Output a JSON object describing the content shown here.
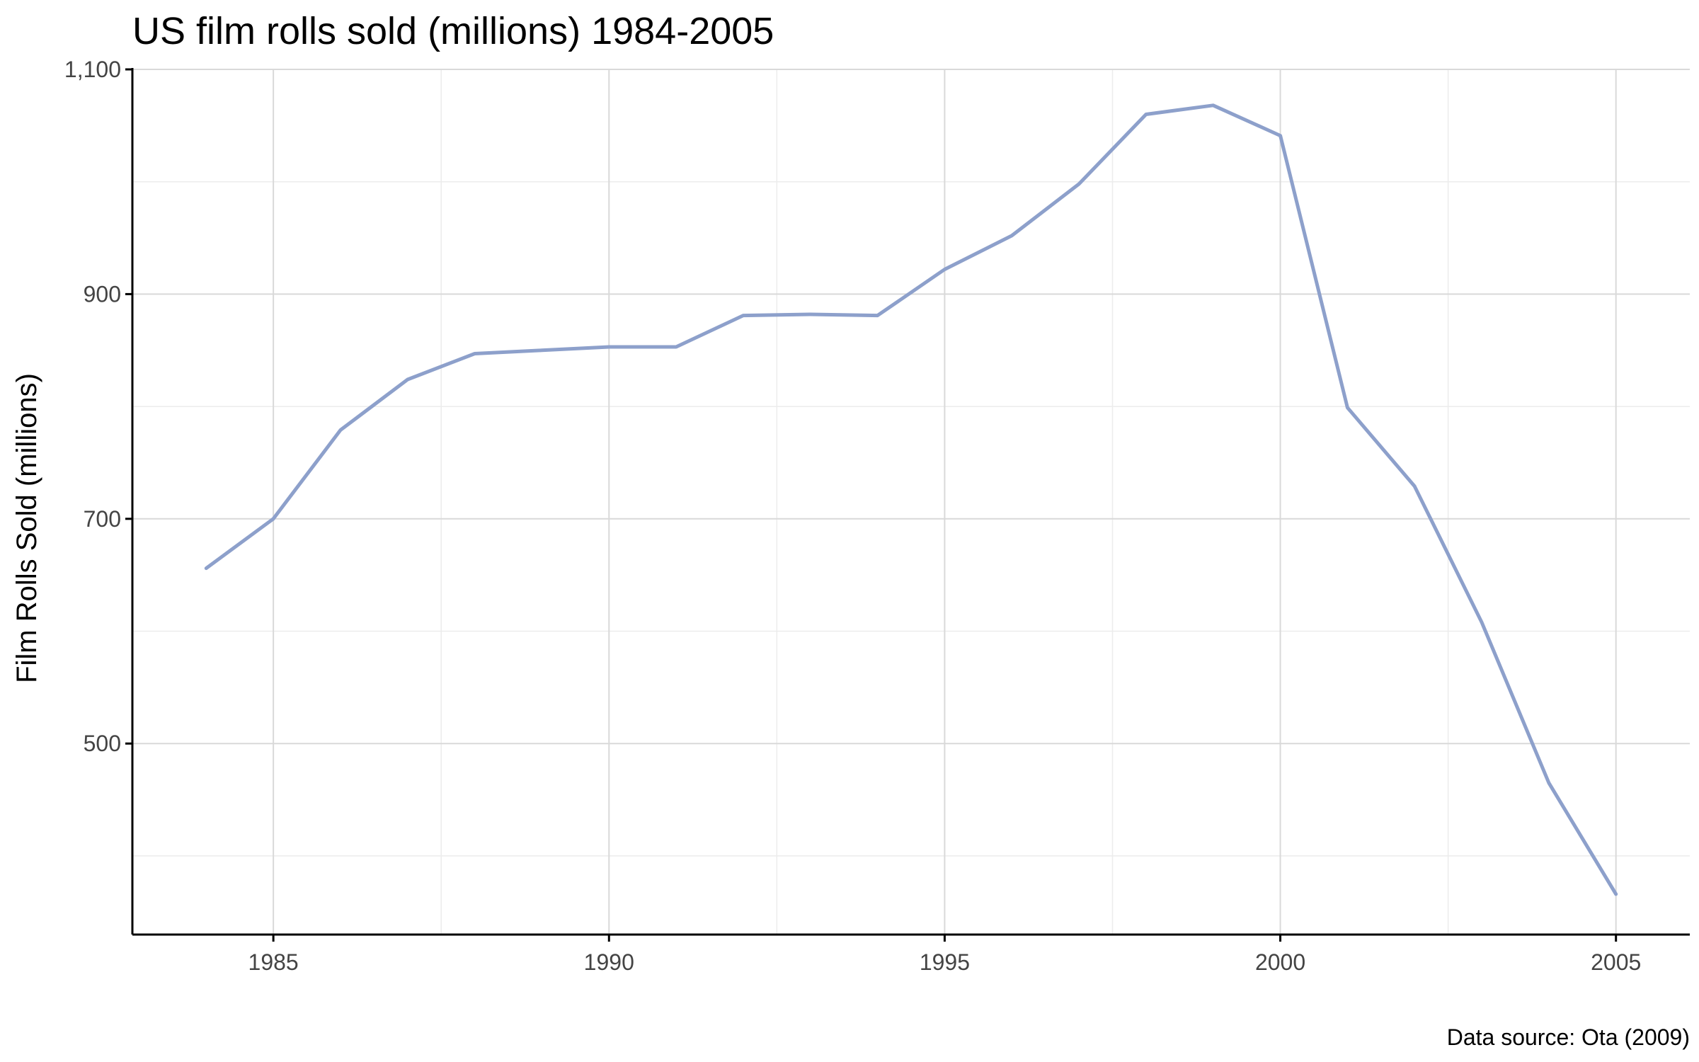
{
  "chart_data": {
    "type": "line",
    "title": "US film rolls sold (millions) 1984-2005",
    "xlabel": "",
    "ylabel": "Film Rolls Sold (millions)",
    "caption": "Data source: Ota (2009)",
    "xlim": [
      1982.9,
      2006.1
    ],
    "ylim": [
      330,
      1100
    ],
    "x_ticks": [
      1985,
      1990,
      1995,
      2000,
      2005
    ],
    "x_tick_labels": [
      "1985",
      "1990",
      "1995",
      "2000",
      "2005"
    ],
    "x_minor_ticks": [
      1987.5,
      1992.5,
      1997.5,
      2002.5
    ],
    "y_ticks": [
      500,
      700,
      900,
      1100
    ],
    "y_tick_labels": [
      "500",
      "700",
      "900",
      "1,100"
    ],
    "y_minor_ticks": [
      400,
      600,
      800,
      1000
    ],
    "grid": true,
    "series": [
      {
        "color": "#8da0cb",
        "x": [
          1984,
          1985,
          1986,
          1987,
          1988,
          1989,
          1990,
          1991,
          1992,
          1993,
          1994,
          1995,
          1996,
          1997,
          1998,
          1999,
          2000,
          2001,
          2002,
          2003,
          2004,
          2005
        ],
        "values": [
          656,
          700,
          779,
          824,
          847,
          850,
          853,
          853,
          881,
          882,
          881,
          922,
          952,
          998,
          1060,
          1068,
          1041,
          799,
          729,
          608,
          465,
          366
        ]
      }
    ]
  }
}
